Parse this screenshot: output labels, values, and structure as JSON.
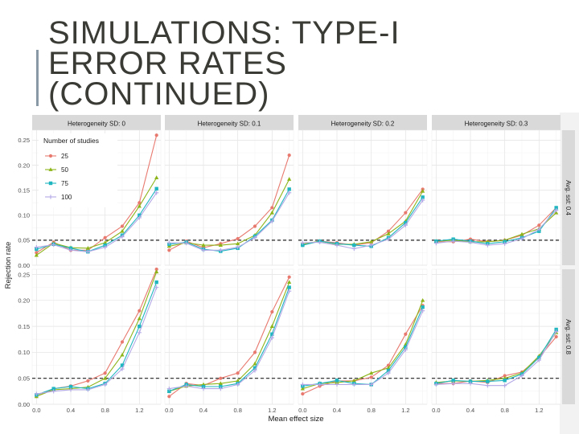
{
  "slide": {
    "title_lines": [
      "SIMULATIONS: TYPE-I",
      "ERROR RATES",
      "(CONTINUED)"
    ]
  },
  "chart_data": {
    "type": "line",
    "layout": "facet-grid 2 rows x 4 columns",
    "xlabel": "Mean effect size",
    "ylabel": "Rejection rate",
    "x": [
      0.0,
      0.2,
      0.4,
      0.6,
      0.8,
      1.0,
      1.2,
      1.4
    ],
    "x_ticks": [
      "0.0",
      "0.4",
      "0.8",
      "1.2"
    ],
    "column_strip_labels": [
      "Heterogeneity SD: 0",
      "Heterogeneity SD: 0.1",
      "Heterogeneity SD: 0.2",
      "Heterogeneity SD: 0.3"
    ],
    "row_strip_labels": [
      "Avg. sst: 0.4",
      "Avg. sst: 0.8"
    ],
    "rows": [
      {
        "ylim": [
          0,
          0.27
        ],
        "y_ticks": [
          "0.00",
          "0.05",
          "0.10",
          "0.15",
          "0.20",
          "0.25"
        ]
      },
      {
        "ylim": [
          0,
          0.26
        ],
        "y_ticks": [
          "0.00",
          "0.05",
          "0.10",
          "0.15",
          "0.20",
          "0.25"
        ]
      }
    ],
    "reference_line": 0.05,
    "legend": {
      "title": "Number of studies",
      "placement": "inside top-left"
    },
    "grid": true,
    "series": [
      {
        "name": "25",
        "color": "#e8796f",
        "marker": "circle"
      },
      {
        "name": "50",
        "color": "#8db419",
        "marker": "triangle"
      },
      {
        "name": "75",
        "color": "#1fb6c0",
        "marker": "square"
      },
      {
        "name": "100",
        "color": "#b2a8e6",
        "marker": "plus"
      }
    ],
    "panels": [
      {
        "row": 0,
        "col": 0,
        "values": [
          [
            0.025,
            0.046,
            0.03,
            0.03,
            0.055,
            0.078,
            0.125,
            0.26
          ],
          [
            0.02,
            0.044,
            0.035,
            0.034,
            0.045,
            0.068,
            0.118,
            0.175
          ],
          [
            0.032,
            0.042,
            0.034,
            0.027,
            0.04,
            0.06,
            0.1,
            0.153
          ],
          [
            0.036,
            0.041,
            0.03,
            0.027,
            0.036,
            0.057,
            0.095,
            0.145
          ]
        ]
      },
      {
        "row": 0,
        "col": 1,
        "values": [
          [
            0.03,
            0.048,
            0.035,
            0.043,
            0.053,
            0.078,
            0.115,
            0.22
          ],
          [
            0.038,
            0.045,
            0.04,
            0.04,
            0.043,
            0.06,
            0.105,
            0.172
          ],
          [
            0.042,
            0.046,
            0.032,
            0.028,
            0.034,
            0.058,
            0.09,
            0.152
          ],
          [
            0.045,
            0.044,
            0.03,
            0.03,
            0.036,
            0.055,
            0.088,
            0.145
          ]
        ]
      },
      {
        "row": 0,
        "col": 2,
        "values": [
          [
            0.042,
            0.048,
            0.045,
            0.04,
            0.045,
            0.068,
            0.105,
            0.152
          ],
          [
            0.042,
            0.048,
            0.042,
            0.042,
            0.047,
            0.063,
            0.088,
            0.148
          ],
          [
            0.04,
            0.048,
            0.043,
            0.04,
            0.038,
            0.055,
            0.085,
            0.136
          ],
          [
            0.045,
            0.046,
            0.04,
            0.033,
            0.04,
            0.052,
            0.08,
            0.13
          ]
        ]
      },
      {
        "row": 0,
        "col": 3,
        "values": [
          [
            0.047,
            0.047,
            0.052,
            0.047,
            0.05,
            0.06,
            0.08,
            0.115
          ],
          [
            0.048,
            0.05,
            0.047,
            0.047,
            0.05,
            0.062,
            0.073,
            0.105
          ],
          [
            0.048,
            0.052,
            0.048,
            0.043,
            0.047,
            0.055,
            0.068,
            0.115
          ],
          [
            0.044,
            0.048,
            0.046,
            0.04,
            0.043,
            0.053,
            0.072,
            0.11
          ]
        ]
      },
      {
        "row": 1,
        "col": 0,
        "values": [
          [
            0.015,
            0.03,
            0.035,
            0.045,
            0.06,
            0.12,
            0.18,
            0.26
          ],
          [
            0.015,
            0.028,
            0.03,
            0.033,
            0.05,
            0.095,
            0.165,
            0.255
          ],
          [
            0.018,
            0.03,
            0.034,
            0.03,
            0.04,
            0.075,
            0.15,
            0.235
          ],
          [
            0.02,
            0.025,
            0.028,
            0.028,
            0.038,
            0.068,
            0.138,
            0.225
          ]
        ]
      },
      {
        "row": 1,
        "col": 1,
        "values": [
          [
            0.015,
            0.04,
            0.036,
            0.05,
            0.06,
            0.1,
            0.178,
            0.245
          ],
          [
            0.025,
            0.035,
            0.038,
            0.04,
            0.045,
            0.078,
            0.15,
            0.235
          ],
          [
            0.025,
            0.038,
            0.034,
            0.034,
            0.04,
            0.07,
            0.135,
            0.225
          ],
          [
            0.03,
            0.035,
            0.03,
            0.03,
            0.038,
            0.065,
            0.128,
            0.218
          ]
        ]
      },
      {
        "row": 1,
        "col": 2,
        "values": [
          [
            0.02,
            0.035,
            0.045,
            0.045,
            0.052,
            0.075,
            0.135,
            0.19
          ],
          [
            0.03,
            0.04,
            0.042,
            0.045,
            0.06,
            0.07,
            0.115,
            0.2
          ],
          [
            0.035,
            0.04,
            0.046,
            0.04,
            0.038,
            0.065,
            0.11,
            0.187
          ],
          [
            0.038,
            0.038,
            0.038,
            0.038,
            0.038,
            0.06,
            0.105,
            0.18
          ]
        ]
      },
      {
        "row": 1,
        "col": 3,
        "values": [
          [
            0.04,
            0.04,
            0.045,
            0.042,
            0.055,
            0.062,
            0.09,
            0.13
          ],
          [
            0.042,
            0.045,
            0.044,
            0.046,
            0.05,
            0.06,
            0.093,
            0.138
          ],
          [
            0.04,
            0.046,
            0.044,
            0.044,
            0.046,
            0.058,
            0.09,
            0.144
          ],
          [
            0.038,
            0.04,
            0.04,
            0.036,
            0.036,
            0.055,
            0.085,
            0.14
          ]
        ]
      }
    ]
  }
}
